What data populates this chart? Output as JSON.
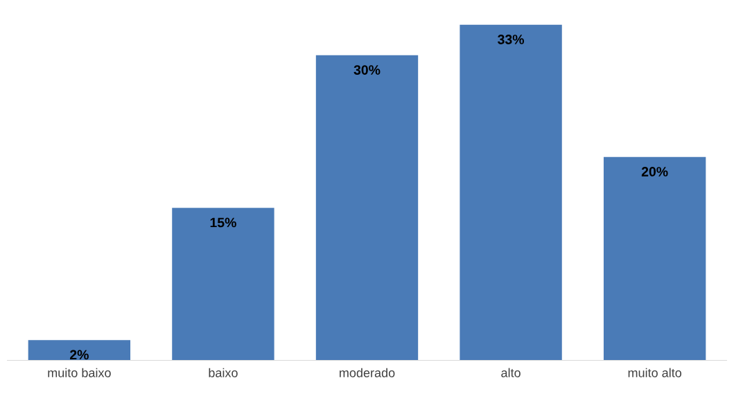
{
  "chart_data": {
    "type": "bar",
    "categories": [
      "muito baixo",
      "baixo",
      "moderado",
      "alto",
      "muito alto"
    ],
    "values": [
      2,
      15,
      30,
      33,
      20
    ],
    "value_labels": [
      "2%",
      "15%",
      "30%",
      "33%",
      "20%"
    ],
    "color": "#4a7bb7",
    "tick_labels": "x",
    "grid": false,
    "legend": false
  }
}
